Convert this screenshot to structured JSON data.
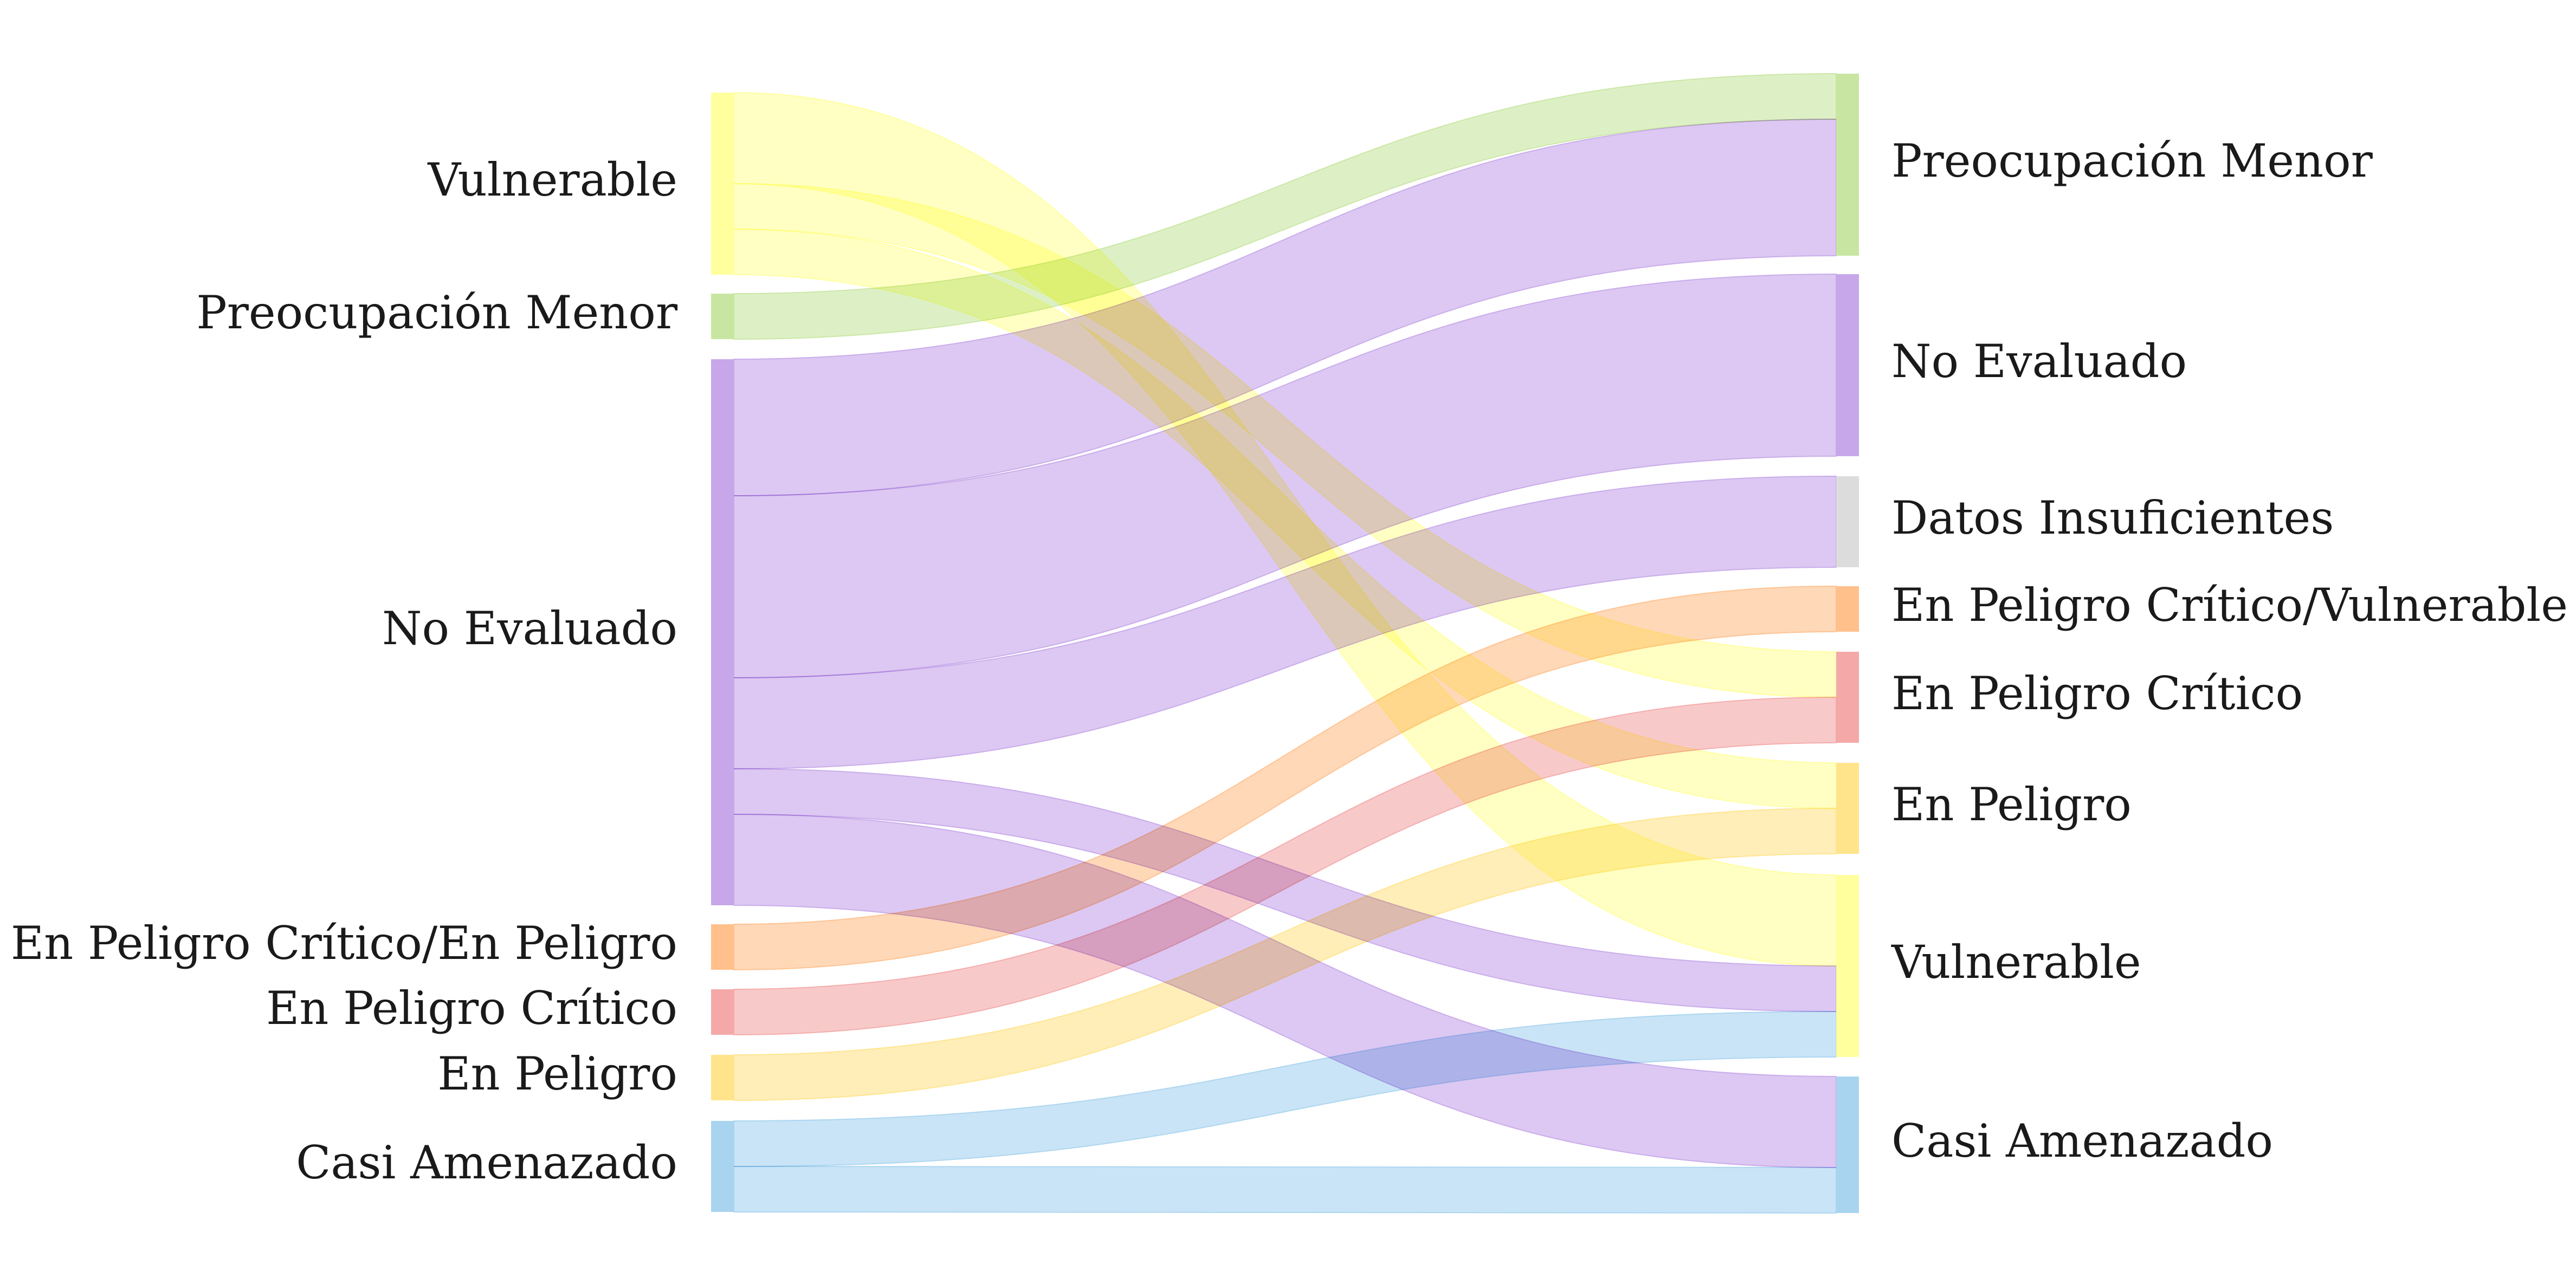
{
  "diagram": {
    "type": "sankey",
    "left_nodes": [
      {
        "id": "L_VU",
        "label": "Vulnerable",
        "color": "#ffff9e",
        "value": 4
      },
      {
        "id": "L_LC",
        "label": "Preocupación Menor",
        "color": "#c8e6a1",
        "value": 1
      },
      {
        "id": "L_NE",
        "label": "No Evaluado",
        "color": "#c7a7ea",
        "value": 12
      },
      {
        "id": "L_CREN",
        "label": "En Peligro Crítico/En Peligro",
        "color": "#ffc08c",
        "value": 1
      },
      {
        "id": "L_CR",
        "label": "En Peligro Crítico",
        "color": "#f4a8a8",
        "value": 1
      },
      {
        "id": "L_EN",
        "label": "En Peligro",
        "color": "#ffe48c",
        "value": 1
      },
      {
        "id": "L_NT",
        "label": "Casi Amenazado",
        "color": "#a8d4f0",
        "value": 2
      }
    ],
    "right_nodes": [
      {
        "id": "R_LC",
        "label": "Preocupación Menor",
        "color": "#c8e6a1",
        "value": 4
      },
      {
        "id": "R_NE",
        "label": "No Evaluado",
        "color": "#c7a7ea",
        "value": 4
      },
      {
        "id": "R_DD",
        "label": "Datos Insuficientes",
        "color": "#dcdcdc",
        "value": 2
      },
      {
        "id": "R_CRVU",
        "label": "En Peligro Crítico/Vulnerable",
        "color": "#ffc08c",
        "value": 1
      },
      {
        "id": "R_CR",
        "label": "En Peligro Crítico",
        "color": "#f4a8a8",
        "value": 2
      },
      {
        "id": "R_EN",
        "label": "En Peligro",
        "color": "#ffe48c",
        "value": 2
      },
      {
        "id": "R_VU",
        "label": "Vulnerable",
        "color": "#ffff9e",
        "value": 4
      },
      {
        "id": "R_NT",
        "label": "Casi Amenazado",
        "color": "#a8d4f0",
        "value": 3
      }
    ],
    "links": [
      {
        "source": "L_VU",
        "target": "R_VU",
        "value": 2,
        "color": "#ffff9e"
      },
      {
        "source": "L_VU",
        "target": "R_CR",
        "value": 1,
        "color": "#ffff9e"
      },
      {
        "source": "L_VU",
        "target": "R_EN",
        "value": 1,
        "color": "#ffff9e"
      },
      {
        "source": "L_LC",
        "target": "R_LC",
        "value": 1,
        "color": "#c8e6a1"
      },
      {
        "source": "L_NE",
        "target": "R_LC",
        "value": 3,
        "color": "#c7a7ea"
      },
      {
        "source": "L_NE",
        "target": "R_NE",
        "value": 4,
        "color": "#c7a7ea"
      },
      {
        "source": "L_NE",
        "target": "R_DD",
        "value": 2,
        "color": "#c7a7ea"
      },
      {
        "source": "L_NE",
        "target": "R_VU",
        "value": 1,
        "color": "#c7a7ea"
      },
      {
        "source": "L_NE",
        "target": "R_NT",
        "value": 2,
        "color": "#c7a7ea"
      },
      {
        "source": "L_CREN",
        "target": "R_CRVU",
        "value": 1,
        "color": "#ffc08c"
      },
      {
        "source": "L_CR",
        "target": "R_CR",
        "value": 1,
        "color": "#f4a8a8"
      },
      {
        "source": "L_EN",
        "target": "R_EN",
        "value": 1,
        "color": "#ffe48c"
      },
      {
        "source": "L_NT",
        "target": "R_VU",
        "value": 1,
        "color": "#a8d4f0"
      },
      {
        "source": "L_NT",
        "target": "R_NT",
        "value": 1,
        "color": "#a8d4f0"
      }
    ]
  }
}
